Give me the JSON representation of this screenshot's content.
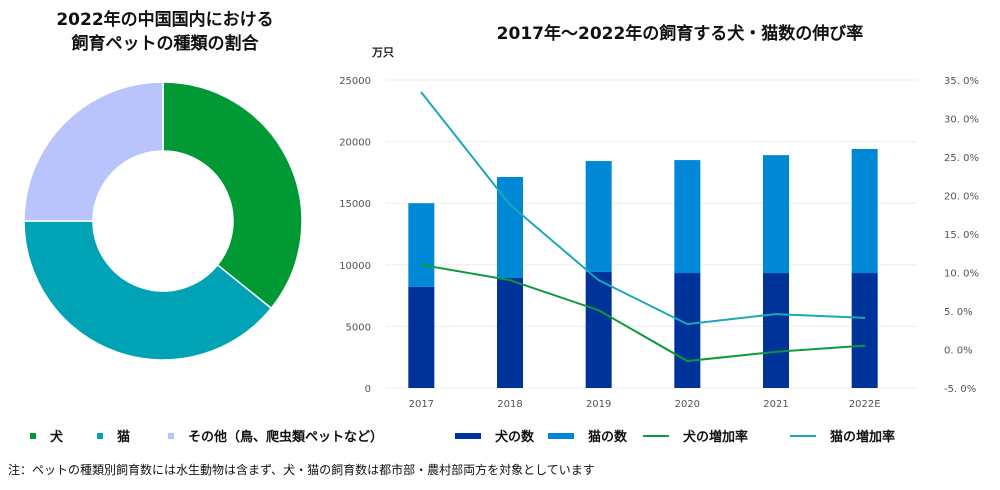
{
  "chart_data": [
    {
      "type": "pie",
      "title": "2022年の中国国内における\n飼育ペットの種類の割合",
      "title_lines": [
        "2022年の中国国内における",
        "飼育ペットの種類の割合"
      ],
      "donut": true,
      "slices": [
        {
          "label": "犬",
          "value": 35.8,
          "color": "#009933"
        },
        {
          "label": "猫",
          "value": 39.2,
          "color": "#00a3b5"
        },
        {
          "label": "その他（鳥、爬虫類ペットなど）",
          "value": 25.0,
          "color": "#b8c4fb"
        }
      ],
      "legend_position": "bottom"
    },
    {
      "type": "bar",
      "stacked": true,
      "title": "2017年～2022年の飼育する犬・猫数の伸び率",
      "ylabel": "万只",
      "categories": [
        "2017",
        "2018",
        "2019",
        "2020",
        "2021",
        "2022E"
      ],
      "ylim": [
        0,
        25000
      ],
      "yticks": [
        "0",
        "5000",
        "10000",
        "15000",
        "20000",
        "25000"
      ],
      "y2lim": [
        -5,
        35
      ],
      "y2ticks": [
        "-5. 0%",
        "0. 0%",
        "5. 0%",
        "10. 0%",
        "15. 0%",
        "20. 0%",
        "25. 0%",
        "30. 0%",
        "35. 0%"
      ],
      "grid": true,
      "series": [
        {
          "name": "犬の数",
          "kind": "bar",
          "color": "#003399",
          "values": [
            8200,
            8930,
            9420,
            9330,
            9330,
            9330
          ]
        },
        {
          "name": "猫の数",
          "kind": "bar",
          "color": "#0088d6",
          "values": [
            6800,
            8200,
            9000,
            9170,
            9570,
            10070
          ]
        },
        {
          "name": "犬の増加率",
          "kind": "line",
          "axis": "right",
          "color": "#0a9a3a",
          "values": [
            11.0,
            9.0,
            5.1,
            -1.5,
            -0.3,
            0.5
          ]
        },
        {
          "name": "猫の増加率",
          "kind": "line",
          "axis": "right",
          "color": "#1aa7b8",
          "values": [
            33.4,
            18.8,
            9.0,
            3.3,
            4.6,
            4.1
          ]
        }
      ],
      "legend_position": "bottom"
    }
  ],
  "note": "注：ペットの種類別飼育数には水生動物は含まず、犬・猫の飼育数は都市部・農村部両方を対象としています"
}
